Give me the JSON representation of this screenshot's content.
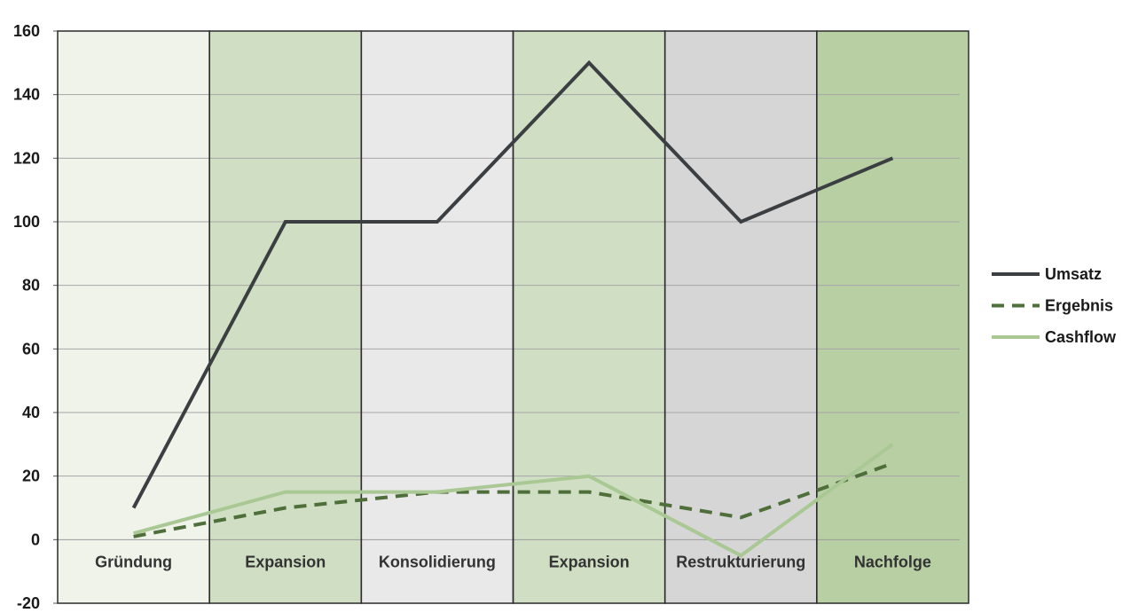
{
  "chart_data": {
    "type": "line",
    "title": "",
    "xlabel": "",
    "ylabel": "",
    "categories": [
      "Gründung",
      "Expansion",
      "Konsolidierung",
      "Expansion",
      "Restrukturierung",
      "Nachfolge"
    ],
    "band_colors": [
      "#eff3ea",
      "#d0dfc3",
      "#e9e9e9",
      "#d0dfc3",
      "#d6d6d6",
      "#b7cfa3"
    ],
    "ylim": [
      -20,
      160
    ],
    "yticks": [
      -20,
      0,
      20,
      40,
      60,
      80,
      100,
      120,
      140,
      160
    ],
    "grid": true,
    "legend_position": "right",
    "x_points": [
      0,
      1,
      2,
      3,
      4,
      5,
      6
    ],
    "series": [
      {
        "name": "Umsatz",
        "color": "#3b3f42",
        "dash": "solid",
        "values": [
          10,
          100,
          100,
          150,
          100,
          120
        ]
      },
      {
        "name": "Ergebnis",
        "color": "#4e6e3a",
        "dash": "dashed",
        "values": [
          1,
          10,
          15,
          15,
          7,
          24
        ]
      },
      {
        "name": "Cashflow",
        "color": "#a9c894",
        "dash": "solid",
        "values": [
          2,
          15,
          15,
          20,
          -5,
          30
        ]
      }
    ]
  }
}
